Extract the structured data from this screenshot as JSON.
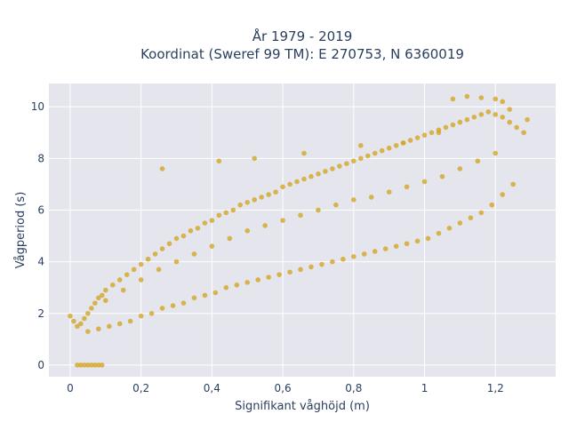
{
  "chart_data": {
    "type": "scatter",
    "title": {
      "line1": "År 1979 - 2019",
      "line2": "Koordinat (Sweref 99 TM): E 270753, N 6360019"
    },
    "xlabel": "Signifikant våghöjd (m)",
    "ylabel": "Vågperiod (s)",
    "xlim": [
      -0.06,
      1.37
    ],
    "ylim": [
      -0.45,
      10.9
    ],
    "x_ticks": [
      {
        "value": 0,
        "label": "0"
      },
      {
        "value": 0.2,
        "label": "0,2"
      },
      {
        "value": 0.4,
        "label": "0,4"
      },
      {
        "value": 0.6,
        "label": "0,6"
      },
      {
        "value": 0.8,
        "label": "0,8"
      },
      {
        "value": 1.0,
        "label": "1"
      },
      {
        "value": 1.2,
        "label": "1,2"
      }
    ],
    "y_ticks": [
      {
        "value": 0,
        "label": "0"
      },
      {
        "value": 2,
        "label": "2"
      },
      {
        "value": 4,
        "label": "4"
      },
      {
        "value": 6,
        "label": "6"
      },
      {
        "value": 8,
        "label": "8"
      },
      {
        "value": 10,
        "label": "10"
      }
    ],
    "grid": true,
    "colors": {
      "marker": "#d4a521",
      "plot_background": "#e5e5ee",
      "grid": "#ffffff"
    },
    "series": [
      {
        "x": [
          0.02,
          0.03,
          0.04,
          0.05,
          0.06,
          0.07,
          0.08,
          0.09,
          0.0,
          0.01,
          0.02,
          0.03,
          0.04,
          0.05,
          0.06,
          0.07,
          0.08,
          0.09,
          0.1,
          0.12,
          0.14,
          0.16,
          0.18,
          0.2,
          0.22,
          0.24,
          0.26,
          0.28,
          0.3,
          0.32,
          0.34,
          0.36,
          0.38,
          0.4,
          0.42,
          0.44,
          0.46,
          0.48,
          0.5,
          0.52,
          0.54,
          0.56,
          0.58,
          0.6,
          0.62,
          0.64,
          0.66,
          0.68,
          0.7,
          0.72,
          0.74,
          0.76,
          0.78,
          0.8,
          0.82,
          0.84,
          0.86,
          0.88,
          0.9,
          0.92,
          0.94,
          0.96,
          0.98,
          1.0,
          1.02,
          1.04,
          1.06,
          1.08,
          1.1,
          1.12,
          1.14,
          1.16,
          1.18,
          1.2,
          1.22,
          1.24,
          1.26,
          1.28,
          0.05,
          0.08,
          0.11,
          0.14,
          0.17,
          0.2,
          0.23,
          0.26,
          0.29,
          0.32,
          0.35,
          0.38,
          0.41,
          0.44,
          0.47,
          0.5,
          0.53,
          0.56,
          0.59,
          0.62,
          0.65,
          0.68,
          0.71,
          0.74,
          0.77,
          0.8,
          0.83,
          0.86,
          0.89,
          0.92,
          0.95,
          0.98,
          1.01,
          1.04,
          1.07,
          1.1,
          1.13,
          1.16,
          1.19,
          1.22,
          1.25,
          0.1,
          0.15,
          0.2,
          0.25,
          0.3,
          0.35,
          0.4,
          0.45,
          0.5,
          0.55,
          0.6,
          0.65,
          0.7,
          0.75,
          0.8,
          0.85,
          0.9,
          0.95,
          1.0,
          1.05,
          1.1,
          1.15,
          1.2,
          0.26,
          0.42,
          0.52,
          0.66,
          0.82,
          0.94,
          1.04,
          1.08,
          1.12,
          1.16,
          1.2,
          1.22,
          1.24,
          1.29
        ],
        "y": [
          0,
          0,
          0,
          0,
          0,
          0,
          0,
          0,
          1.9,
          1.7,
          1.5,
          1.6,
          1.8,
          2.0,
          2.2,
          2.4,
          2.6,
          2.7,
          2.9,
          3.1,
          3.3,
          3.5,
          3.7,
          3.9,
          4.1,
          4.3,
          4.5,
          4.7,
          4.9,
          5.0,
          5.2,
          5.3,
          5.5,
          5.6,
          5.8,
          5.9,
          6.0,
          6.2,
          6.3,
          6.4,
          6.5,
          6.6,
          6.7,
          6.9,
          7.0,
          7.1,
          7.2,
          7.3,
          7.4,
          7.5,
          7.6,
          7.7,
          7.8,
          7.9,
          8.0,
          8.1,
          8.2,
          8.3,
          8.4,
          8.5,
          8.6,
          8.7,
          8.8,
          8.9,
          9.0,
          9.1,
          9.2,
          9.3,
          9.4,
          9.5,
          9.6,
          9.7,
          9.8,
          9.7,
          9.6,
          9.4,
          9.2,
          9.0,
          1.3,
          1.4,
          1.5,
          1.6,
          1.7,
          1.9,
          2.0,
          2.2,
          2.3,
          2.4,
          2.6,
          2.7,
          2.8,
          3.0,
          3.1,
          3.2,
          3.3,
          3.4,
          3.5,
          3.6,
          3.7,
          3.8,
          3.9,
          4.0,
          4.1,
          4.2,
          4.3,
          4.4,
          4.5,
          4.6,
          4.7,
          4.8,
          4.9,
          5.1,
          5.3,
          5.5,
          5.7,
          5.9,
          6.2,
          6.6,
          7.0,
          2.5,
          2.9,
          3.3,
          3.7,
          4.0,
          4.3,
          4.6,
          4.9,
          5.2,
          5.4,
          5.6,
          5.8,
          6.0,
          6.2,
          6.4,
          6.5,
          6.7,
          6.9,
          7.1,
          7.3,
          7.6,
          7.9,
          8.2,
          7.6,
          7.9,
          8.0,
          8.2,
          8.5,
          8.6,
          9.0,
          10.3,
          10.4,
          10.35,
          10.3,
          10.2,
          9.9,
          9.5
        ]
      }
    ]
  }
}
